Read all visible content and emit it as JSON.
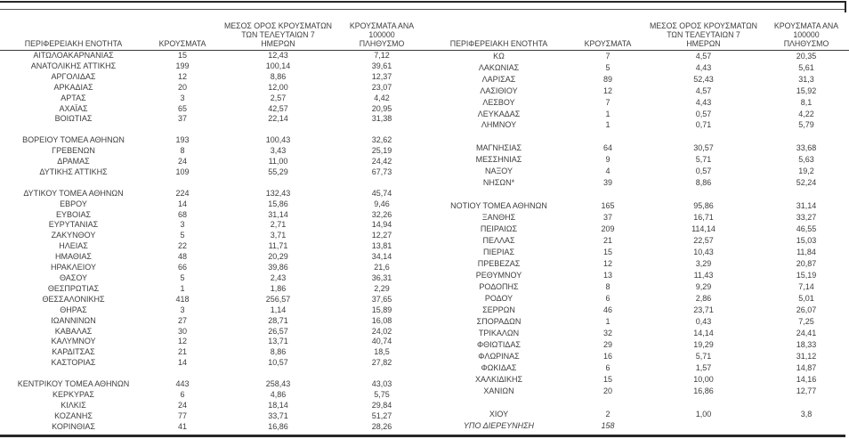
{
  "colors": {
    "text": "#3d3d3d",
    "rule": "#262626",
    "background": "#ffffff"
  },
  "table": {
    "headers": {
      "region": "ΠΕΡΙΦΕΡΕΙΑΚΗ ΕΝΟΤΗΤΑ",
      "cases": "ΚΡΟΥΣΜΑΤΑ",
      "avg7_lines": [
        "ΜΕΣΟΣ ΟΡΟΣ ΚΡΟΥΣΜΑΤΩΝ",
        "ΤΩΝ ΤΕΛΕΥΤΑΙΩΝ 7",
        "ΗΜΕΡΩΝ"
      ],
      "per100k_lines": [
        "ΚΡΟΥΣΜΑΤΑ ΑΝΑ 100000",
        "ΠΛΗΘΥΣΜΟ"
      ]
    },
    "left_rows": [
      {
        "name": "ΑΙΤΩΛΟΑΚΑΡΝΑΝΙΑΣ",
        "cases": "15",
        "avg7": "12,43",
        "per100k": "7,12"
      },
      {
        "name": "ΑΝΑΤΟΛΙΚΗΣ ΑΤΤΙΚΗΣ",
        "cases": "199",
        "avg7": "100,14",
        "per100k": "39,61"
      },
      {
        "name": "ΑΡΓΟΛΙΔΑΣ",
        "cases": "12",
        "avg7": "8,86",
        "per100k": "12,37"
      },
      {
        "name": "ΑΡΚΑΔΙΑΣ",
        "cases": "20",
        "avg7": "12,00",
        "per100k": "23,07"
      },
      {
        "name": "ΑΡΤΑΣ",
        "cases": "3",
        "avg7": "2,57",
        "per100k": "4,42"
      },
      {
        "name": "ΑΧΑΪΑΣ",
        "cases": "65",
        "avg7": "42,57",
        "per100k": "20,95"
      },
      {
        "name": "ΒΟΙΩΤΙΑΣ",
        "cases": "37",
        "avg7": "22,14",
        "per100k": "31,38"
      },
      {
        "blank": true
      },
      {
        "name": "ΒΟΡΕΙΟΥ ΤΟΜΕΑ ΑΘΗΝΩΝ",
        "cases": "193",
        "avg7": "100,43",
        "per100k": "32,62"
      },
      {
        "name": "ΓΡΕΒΕΝΩΝ",
        "cases": "8",
        "avg7": "3,43",
        "per100k": "25,19"
      },
      {
        "name": "ΔΡΑΜΑΣ",
        "cases": "24",
        "avg7": "11,00",
        "per100k": "24,42"
      },
      {
        "name": "ΔΥΤΙΚΗΣ ΑΤΤΙΚΗΣ",
        "cases": "109",
        "avg7": "55,29",
        "per100k": "67,73"
      },
      {
        "blank": true
      },
      {
        "name": "ΔΥΤΙΚΟΥ ΤΟΜΕΑ ΑΘΗΝΩΝ",
        "cases": "224",
        "avg7": "132,43",
        "per100k": "45,74"
      },
      {
        "name": "ΕΒΡΟΥ",
        "cases": "14",
        "avg7": "15,86",
        "per100k": "9,46"
      },
      {
        "name": "ΕΥΒΟΙΑΣ",
        "cases": "68",
        "avg7": "31,14",
        "per100k": "32,26"
      },
      {
        "name": "ΕΥΡΥΤΑΝΙΑΣ",
        "cases": "3",
        "avg7": "2,71",
        "per100k": "14,94"
      },
      {
        "name": "ΖΑΚΥΝΘΟΥ",
        "cases": "5",
        "avg7": "3,71",
        "per100k": "12,27"
      },
      {
        "name": "ΗΛΕΙΑΣ",
        "cases": "22",
        "avg7": "11,71",
        "per100k": "13,81"
      },
      {
        "name": "ΗΜΑΘΙΑΣ",
        "cases": "48",
        "avg7": "20,29",
        "per100k": "34,14"
      },
      {
        "name": "ΗΡΑΚΛΕΙΟΥ",
        "cases": "66",
        "avg7": "39,86",
        "per100k": "21,6"
      },
      {
        "name": "ΘΑΣΟΥ",
        "cases": "5",
        "avg7": "2,43",
        "per100k": "36,31"
      },
      {
        "name": "ΘΕΣΠΡΩΤΙΑΣ",
        "cases": "1",
        "avg7": "1,86",
        "per100k": "2,29"
      },
      {
        "name": "ΘΕΣΣΑΛΟΝΙΚΗΣ",
        "cases": "418",
        "avg7": "256,57",
        "per100k": "37,65"
      },
      {
        "name": "ΘΗΡΑΣ",
        "cases": "3",
        "avg7": "1,14",
        "per100k": "15,89"
      },
      {
        "name": "ΙΩΑΝΝΙΝΩΝ",
        "cases": "27",
        "avg7": "28,71",
        "per100k": "16,08"
      },
      {
        "name": "ΚΑΒΑΛΑΣ",
        "cases": "30",
        "avg7": "26,57",
        "per100k": "24,02"
      },
      {
        "name": "ΚΑΛΥΜΝΟΥ",
        "cases": "12",
        "avg7": "13,71",
        "per100k": "40,74"
      },
      {
        "name": "ΚΑΡΔΙΤΣΑΣ",
        "cases": "21",
        "avg7": "8,86",
        "per100k": "18,5"
      },
      {
        "name": "ΚΑΣΤΟΡΙΑΣ",
        "cases": "14",
        "avg7": "10,57",
        "per100k": "27,82"
      },
      {
        "blank": true
      },
      {
        "name": "ΚΕΝΤΡΙΚΟΥ ΤΟΜΕΑ ΑΘΗΝΩΝ",
        "cases": "443",
        "avg7": "258,43",
        "per100k": "43,03"
      },
      {
        "name": "ΚΕΡΚΥΡΑΣ",
        "cases": "6",
        "avg7": "4,86",
        "per100k": "5,75"
      },
      {
        "name": "ΚΙΛΚΙΣ",
        "cases": "24",
        "avg7": "18,14",
        "per100k": "29,84"
      },
      {
        "name": "ΚΟΖΑΝΗΣ",
        "cases": "77",
        "avg7": "33,71",
        "per100k": "51,27"
      },
      {
        "name": "ΚΟΡΙΝΘΙΑΣ",
        "cases": "41",
        "avg7": "16,86",
        "per100k": "28,26"
      }
    ],
    "right_rows": [
      {
        "name": "ΚΩ",
        "cases": "7",
        "avg7": "4,57",
        "per100k": "20,35"
      },
      {
        "name": "ΛΑΚΩΝΙΑΣ",
        "cases": "5",
        "avg7": "4,43",
        "per100k": "5,61"
      },
      {
        "name": "ΛΑΡΙΣΑΣ",
        "cases": "89",
        "avg7": "52,43",
        "per100k": "31,3"
      },
      {
        "name": "ΛΑΣΙΘΙΟΥ",
        "cases": "12",
        "avg7": "4,57",
        "per100k": "15,92"
      },
      {
        "name": "ΛΕΣΒΟΥ",
        "cases": "7",
        "avg7": "4,43",
        "per100k": "8,1"
      },
      {
        "name": "ΛΕΥΚΑΔΑΣ",
        "cases": "1",
        "avg7": "0,57",
        "per100k": "4,22"
      },
      {
        "name": "ΛΗΜΝΟΥ",
        "cases": "1",
        "avg7": "0,71",
        "per100k": "5,79"
      },
      {
        "blank": true
      },
      {
        "name": "ΜΑΓΝΗΣΙΑΣ",
        "cases": "64",
        "avg7": "30,57",
        "per100k": "33,68"
      },
      {
        "name": "ΜΕΣΣΗΝΙΑΣ",
        "cases": "9",
        "avg7": "5,71",
        "per100k": "5,63"
      },
      {
        "name": "ΝΑΞΟΥ",
        "cases": "4",
        "avg7": "0,57",
        "per100k": "19,2"
      },
      {
        "name": "ΝΗΣΩΝ*",
        "cases": "39",
        "avg7": "8,86",
        "per100k": "52,24"
      },
      {
        "blank": true
      },
      {
        "name": "ΝΟΤΙΟΥ ΤΟΜΕΑ ΑΘΗΝΩΝ",
        "cases": "165",
        "avg7": "95,86",
        "per100k": "31,14"
      },
      {
        "name": "ΞΑΝΘΗΣ",
        "cases": "37",
        "avg7": "16,71",
        "per100k": "33,27"
      },
      {
        "name": "ΠΕΙΡΑΙΩΣ",
        "cases": "209",
        "avg7": "114,14",
        "per100k": "46,55"
      },
      {
        "name": "ΠΕΛΛΑΣ",
        "cases": "21",
        "avg7": "22,57",
        "per100k": "15,03"
      },
      {
        "name": "ΠΙΕΡΙΑΣ",
        "cases": "15",
        "avg7": "10,43",
        "per100k": "11,84"
      },
      {
        "name": "ΠΡΕΒΕΖΑΣ",
        "cases": "12",
        "avg7": "3,29",
        "per100k": "20,87"
      },
      {
        "name": "ΡΕΘΥΜΝΟΥ",
        "cases": "13",
        "avg7": "11,43",
        "per100k": "15,19"
      },
      {
        "name": "ΡΟΔΟΠΗΣ",
        "cases": "8",
        "avg7": "9,29",
        "per100k": "7,14"
      },
      {
        "name": "ΡΟΔΟΥ",
        "cases": "6",
        "avg7": "2,86",
        "per100k": "5,01"
      },
      {
        "name": "ΣΕΡΡΩΝ",
        "cases": "46",
        "avg7": "23,71",
        "per100k": "26,07"
      },
      {
        "name": "ΣΠΟΡΑΔΩΝ",
        "cases": "1",
        "avg7": "0,43",
        "per100k": "7,25"
      },
      {
        "name": "ΤΡΙΚΑΛΩΝ",
        "cases": "32",
        "avg7": "14,14",
        "per100k": "24,41"
      },
      {
        "name": "ΦΘΙΩΤΙΔΑΣ",
        "cases": "29",
        "avg7": "19,29",
        "per100k": "18,33"
      },
      {
        "name": "ΦΛΩΡΙΝΑΣ",
        "cases": "16",
        "avg7": "5,71",
        "per100k": "31,12"
      },
      {
        "name": "ΦΩΚΙΔΑΣ",
        "cases": "6",
        "avg7": "1,57",
        "per100k": "14,87"
      },
      {
        "name": "ΧΑΛΚΙΔΙΚΗΣ",
        "cases": "15",
        "avg7": "10,00",
        "per100k": "14,16"
      },
      {
        "name": "ΧΑΝΙΩΝ",
        "cases": "20",
        "avg7": "16,86",
        "per100k": "12,77"
      },
      {
        "blank": true
      },
      {
        "name": "ΧΙΟΥ",
        "cases": "2",
        "avg7": "1,00",
        "per100k": "3,8"
      },
      {
        "name": "ΥΠΟ ΔΙΕΡΕΥΝΗΣΗ",
        "cases": "158",
        "avg7": "",
        "per100k": "",
        "italic": true
      }
    ]
  }
}
